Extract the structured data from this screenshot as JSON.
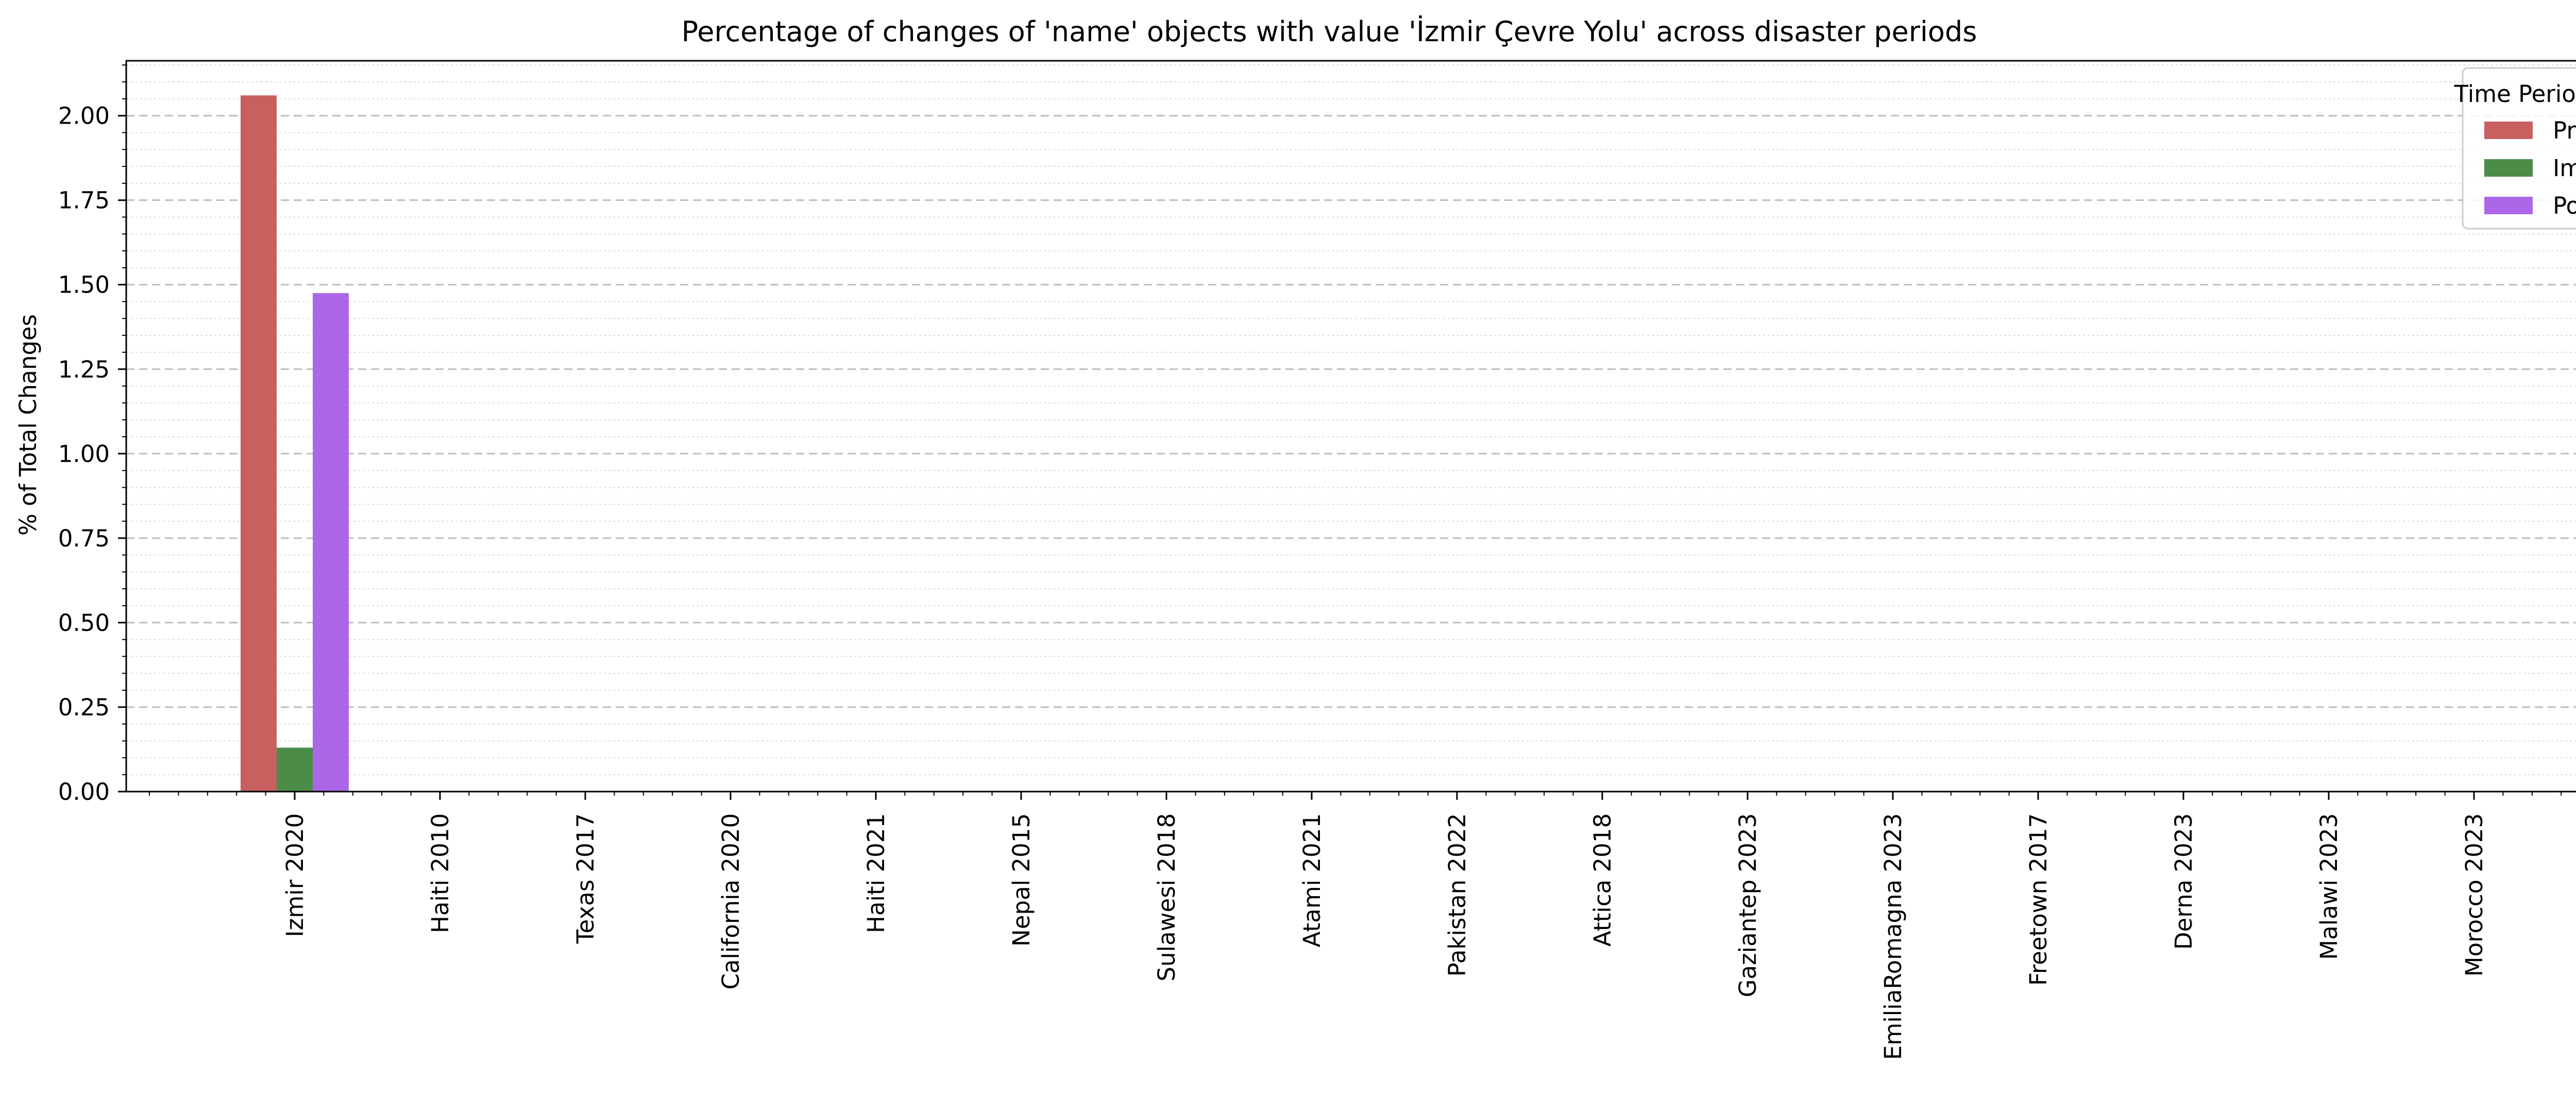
{
  "chart_data": {
    "type": "bar",
    "title": "Percentage of changes of 'name' objects with value 'İzmir Çevre Yolu' across disaster periods",
    "xlabel": "",
    "ylabel": "% of Total Changes",
    "ylim": [
      0,
      2.1625
    ],
    "yticks": [
      0.0,
      0.25,
      0.5,
      0.75,
      1.0,
      1.25,
      1.5,
      1.75,
      2.0
    ],
    "ytick_labels": [
      "0.00",
      "0.25",
      "0.50",
      "0.75",
      "1.00",
      "1.25",
      "1.50",
      "1.75",
      "2.00"
    ],
    "grid": true,
    "legend_title": "Time Period",
    "legend_position": "top-right",
    "categories": [
      "Izmir 2020",
      "Haiti 2010",
      "Texas 2017",
      "California 2020",
      "Haiti 2021",
      "Nepal 2015",
      "Sulawesi 2018",
      "Atami 2021",
      "Pakistan 2022",
      "Attica 2018",
      "Gaziantep 2023",
      "EmiliaRomagna 2023",
      "Freetown 2017",
      "Derna 2023",
      "Malawi 2023",
      "Morocco 2023"
    ],
    "series": [
      {
        "name": "Pre",
        "color": "#c8605f",
        "values": [
          2.06,
          0,
          0,
          0,
          0,
          0,
          0,
          0,
          0,
          0,
          0,
          0,
          0,
          0,
          0,
          0
        ]
      },
      {
        "name": "Imm",
        "color": "#4b8d48",
        "values": [
          0.13,
          0,
          0,
          0,
          0,
          0,
          0,
          0,
          0,
          0,
          0,
          0,
          0,
          0,
          0,
          0
        ]
      },
      {
        "name": "Post",
        "color": "#ac67e9",
        "values": [
          1.475,
          0,
          0,
          0,
          0,
          0,
          0,
          0,
          0,
          0,
          0,
          0,
          0,
          0,
          0,
          0
        ]
      }
    ]
  }
}
